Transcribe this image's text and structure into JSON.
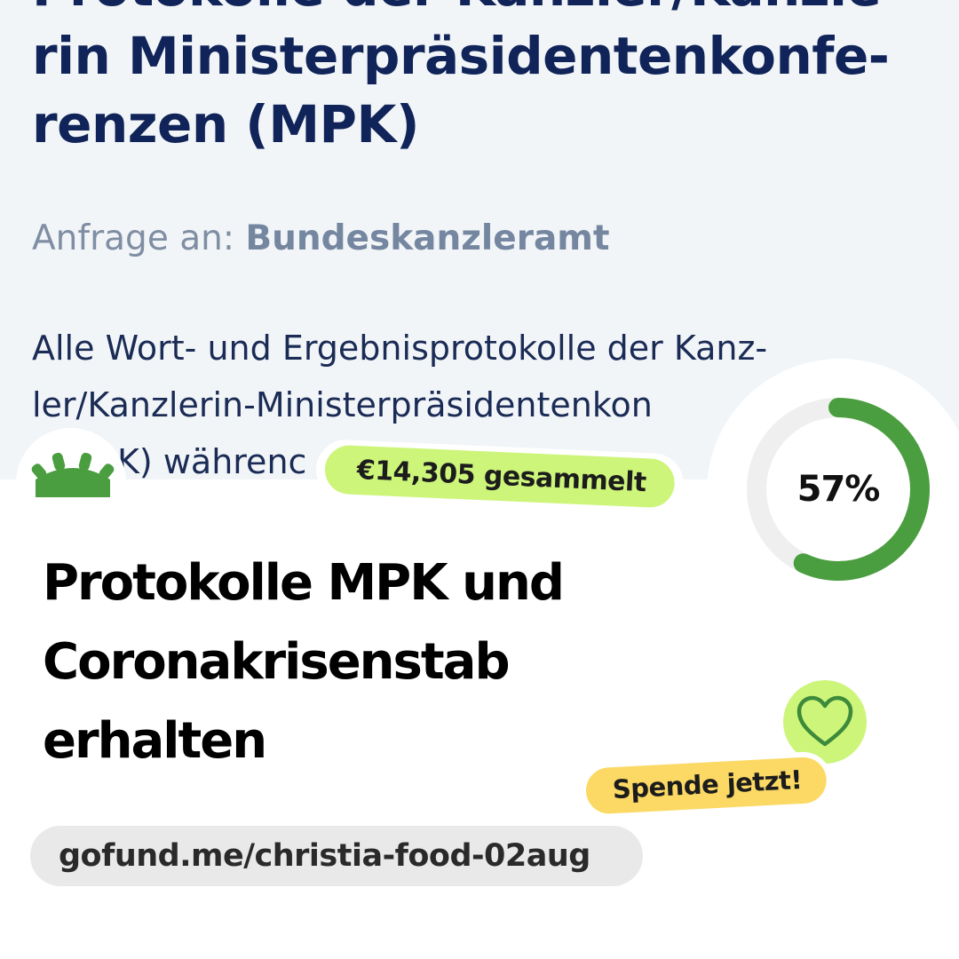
{
  "request_page": {
    "title_lines": [
      "Protokolle der Kanzler/Kanzle-",
      "rin Ministerpräsidentenkonfe-",
      "renzen (MPK)"
    ],
    "recipient_label": "Anfrage an:",
    "recipient_name": "Bundeskanzleramt",
    "description_lines": [
      "Alle Wort- und Ergebnisprotokolle der Kanz-",
      "ler/Kanzlerin-Ministerpräsidentenkon",
      "K) währenc"
    ]
  },
  "campaign": {
    "raised_label": "€14,305 gesammelt",
    "progress_percent": 57,
    "progress_label": "57%",
    "title_lines": [
      "Protokolle MPK und",
      "Coronakrisenstab",
      "erhalten"
    ],
    "donate_label": "Spende jetzt!",
    "url": "gofund.me/christia-food-02aug"
  },
  "colors": {
    "brand_green": "#4a9e3f",
    "raised_pill": "#cdf57a",
    "donate_pill": "#fbd964",
    "heading_navy": "#102459"
  },
  "icons": {
    "logo": "gofundme-logo-icon",
    "heart": "heart-icon"
  }
}
